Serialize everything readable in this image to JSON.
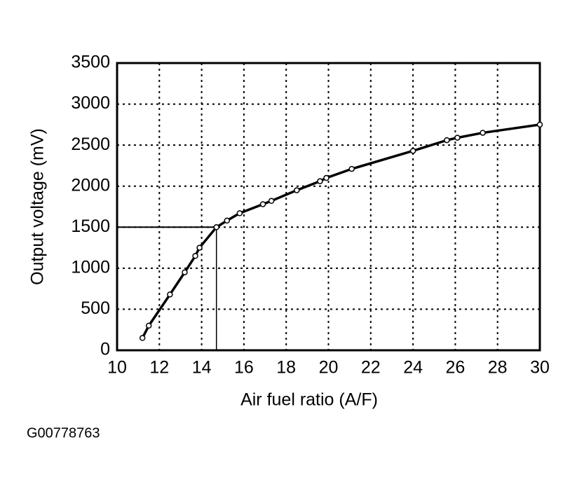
{
  "chart_data": {
    "type": "line",
    "x_label": "Air fuel ratio (A/F)",
    "y_label": "Output voltage (mV)",
    "caption": "G00778763",
    "x": [
      11.2,
      11.5,
      12.5,
      13.2,
      13.7,
      13.9,
      14.7,
      15.2,
      15.8,
      16.9,
      17.3,
      18.5,
      19.6,
      19.9,
      21.1,
      24,
      25.6,
      26.1,
      27.3,
      30
    ],
    "series": [
      {
        "color": "#000000",
        "values": [
          150,
          300,
          680,
          950,
          1150,
          1250,
          1500,
          1580,
          1670,
          1780,
          1820,
          1950,
          2060,
          2100,
          2210,
          2430,
          2560,
          2590,
          2650,
          2750
        ]
      }
    ],
    "reference": {
      "x": 14.7,
      "y": 1500
    },
    "xlim": [
      10,
      30
    ],
    "xticks": [
      10,
      12,
      14,
      16,
      18,
      20,
      22,
      24,
      26,
      28,
      30
    ],
    "ylim": [
      0,
      3500
    ],
    "yticks": [
      0,
      500,
      1000,
      1500,
      2000,
      2500,
      3000,
      3500
    ],
    "grid": true
  }
}
